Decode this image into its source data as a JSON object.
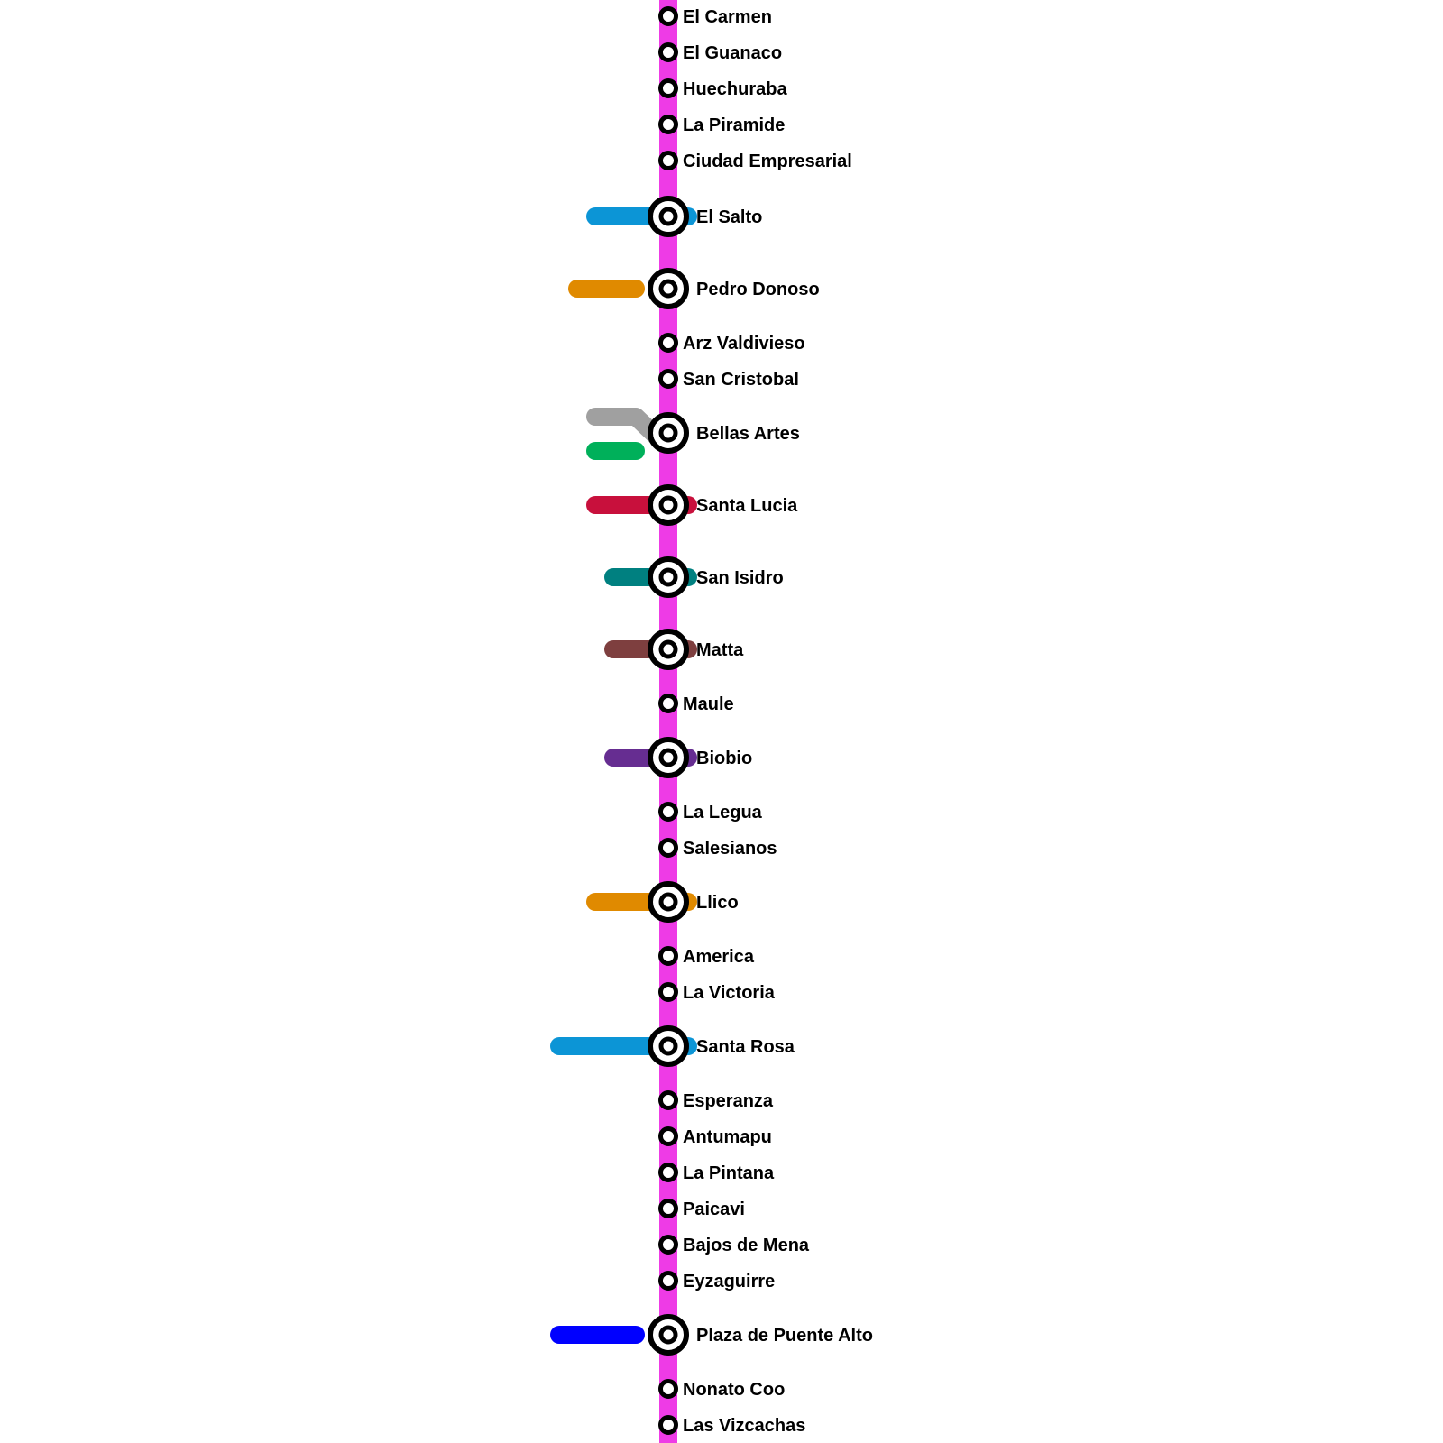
{
  "line": {
    "color": "#EE3BE6"
  },
  "stations": [
    {
      "name": "El Carmen",
      "interchange": false
    },
    {
      "name": "El Guanaco",
      "interchange": false
    },
    {
      "name": "Huechuraba",
      "interchange": false
    },
    {
      "name": "La Piramide",
      "interchange": false
    },
    {
      "name": "Ciudad Empresarial",
      "interchange": false
    },
    {
      "name": "El Salto",
      "interchange": true,
      "connections": [
        {
          "color": "#0C95D6",
          "name": "light-blue-line"
        }
      ]
    },
    {
      "name": "Pedro Donoso",
      "interchange": true,
      "connections": [
        {
          "color": "#E08A00",
          "name": "orange-line"
        }
      ]
    },
    {
      "name": "Arz Valdivieso",
      "interchange": false
    },
    {
      "name": "San Cristobal",
      "interchange": false
    },
    {
      "name": "Bellas Artes",
      "interchange": true,
      "connections": [
        {
          "color": "#A0A0A0",
          "name": "gray-line"
        },
        {
          "color": "#00B05A",
          "name": "green-line"
        }
      ]
    },
    {
      "name": "Santa Lucia",
      "interchange": true,
      "connections": [
        {
          "color": "#C8103C",
          "name": "red-line"
        }
      ]
    },
    {
      "name": "San Isidro",
      "interchange": true,
      "connections": [
        {
          "color": "#008080",
          "name": "teal-line"
        }
      ]
    },
    {
      "name": "Matta",
      "interchange": true,
      "connections": [
        {
          "color": "#7E3F3F",
          "name": "brown-line"
        }
      ]
    },
    {
      "name": "Maule",
      "interchange": false
    },
    {
      "name": "Biobio",
      "interchange": true,
      "connections": [
        {
          "color": "#662D91",
          "name": "purple-line"
        }
      ]
    },
    {
      "name": "La Legua",
      "interchange": false
    },
    {
      "name": "Salesianos",
      "interchange": false
    },
    {
      "name": "Llico",
      "interchange": true,
      "connections": [
        {
          "color": "#E08A00",
          "name": "orange-line"
        }
      ]
    },
    {
      "name": "America",
      "interchange": false
    },
    {
      "name": "La Victoria",
      "interchange": false
    },
    {
      "name": "Santa Rosa",
      "interchange": true,
      "connections": [
        {
          "color": "#0C95D6",
          "name": "light-blue-line"
        }
      ]
    },
    {
      "name": "Esperanza",
      "interchange": false
    },
    {
      "name": "Antumapu",
      "interchange": false
    },
    {
      "name": "La Pintana",
      "interchange": false
    },
    {
      "name": "Paicavi",
      "interchange": false
    },
    {
      "name": "Bajos de Mena",
      "interchange": false
    },
    {
      "name": "Eyzaguirre",
      "interchange": false
    },
    {
      "name": "Plaza de Puente Alto",
      "interchange": true,
      "connections": [
        {
          "color": "#0000FF",
          "name": "blue-line"
        }
      ]
    },
    {
      "name": "Nonato Coo",
      "interchange": false
    },
    {
      "name": "Las Vizcachas",
      "interchange": false
    }
  ]
}
